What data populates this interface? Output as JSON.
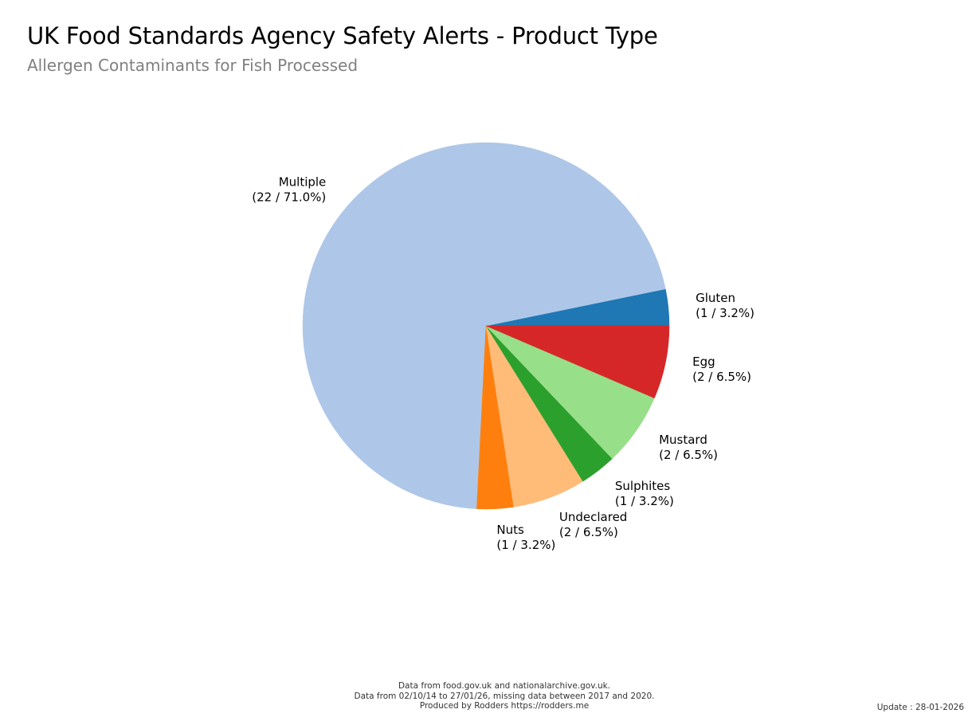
{
  "header": {
    "title": "UK Food Standards Agency Safety Alerts - Product Type",
    "subtitle": "Allergen Contaminants for Fish Processed"
  },
  "footer": {
    "lines": [
      "Data from food.gov.uk and nationalarchive.gov.uk.",
      "Data from 02/10/14 to 27/01/26, missing data between 2017 and 2020.",
      "Produced by Rodders https://rodders.me"
    ],
    "update": "Update : 28-01-2026"
  },
  "chart_data": {
    "type": "pie",
    "title": "UK Food Standards Agency Safety Alerts - Product Type",
    "subtitle": "Allergen Contaminants for Fish Processed",
    "start_angle_deg": 0,
    "direction": "counterclockwise",
    "slices": [
      {
        "name": "Gluten",
        "value": 1,
        "label": "(1 / 3.2%)",
        "color": "#1f77b4"
      },
      {
        "name": "Multiple",
        "value": 22,
        "label": "(22 / 71.0%)",
        "color": "#aec7e8"
      },
      {
        "name": "Nuts",
        "value": 1,
        "label": "(1 / 3.2%)",
        "color": "#ff7f0e"
      },
      {
        "name": "Undeclared",
        "value": 2,
        "label": "(2 / 6.5%)",
        "color": "#ffbb78"
      },
      {
        "name": "Sulphites",
        "value": 1,
        "label": "(1 / 3.2%)",
        "color": "#2ca02c"
      },
      {
        "name": "Mustard",
        "value": 2,
        "label": "(2 / 6.5%)",
        "color": "#98df8a"
      },
      {
        "name": "Egg",
        "value": 2,
        "label": "(2 / 6.5%)",
        "color": "#d62728"
      }
    ]
  }
}
